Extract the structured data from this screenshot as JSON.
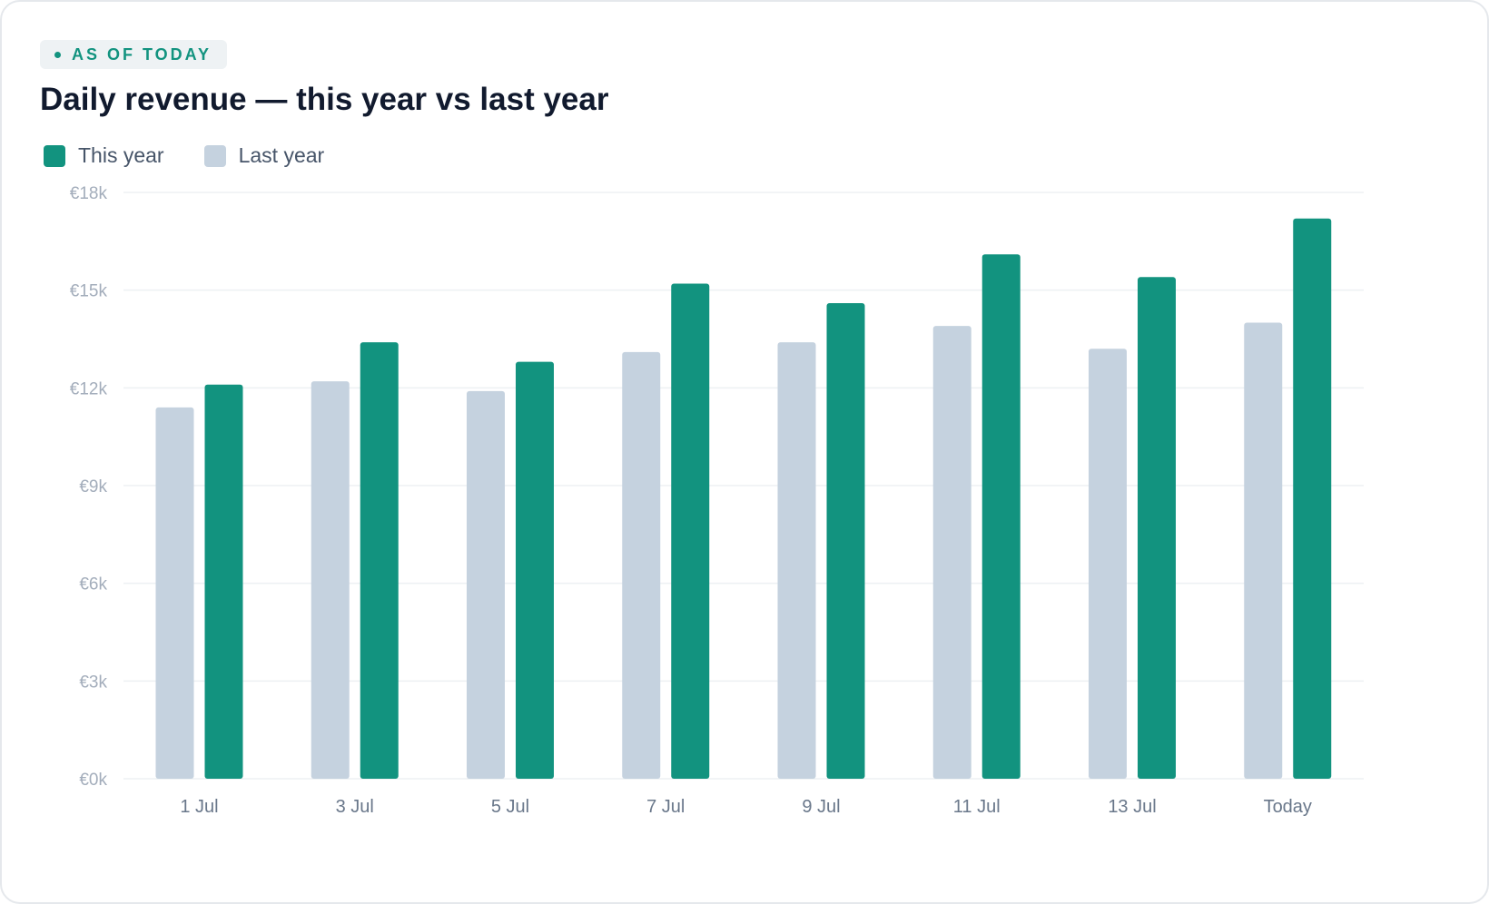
{
  "badge": {
    "label": "AS OF TODAY"
  },
  "header": {
    "title": "Daily revenue — this year vs last year"
  },
  "colors": {
    "this_year": "#12937f",
    "last_year": "#c5d2df",
    "grid": "#edf0f3",
    "badge_bg": "#eef2f4"
  },
  "legend": [
    {
      "label": "This year",
      "series": "this_year"
    },
    {
      "label": "Last year",
      "series": "last_year"
    }
  ],
  "chart_data": {
    "type": "bar",
    "title": "Daily revenue — this year vs last year",
    "xlabel": "",
    "ylabel": "",
    "categories": [
      "1 Jul",
      "3 Jul",
      "5 Jul",
      "7 Jul",
      "9 Jul",
      "11 Jul",
      "13 Jul",
      "Today"
    ],
    "series": [
      {
        "name": "Last year",
        "color": "#c5d2df",
        "values": [
          11400,
          12200,
          11900,
          13100,
          13400,
          13900,
          13200,
          14000
        ]
      },
      {
        "name": "This year",
        "color": "#12937f",
        "values": [
          12100,
          13400,
          12800,
          15200,
          14600,
          16100,
          15400,
          17200
        ]
      }
    ],
    "ylim": [
      0,
      18000
    ],
    "yticks": [
      0,
      3000,
      6000,
      9000,
      12000,
      15000,
      18000
    ],
    "ytick_labels": [
      "€0k",
      "€3k",
      "€6k",
      "€9k",
      "€12k",
      "€15k",
      "€18k"
    ],
    "grid": true,
    "legend_position": "top-left"
  }
}
